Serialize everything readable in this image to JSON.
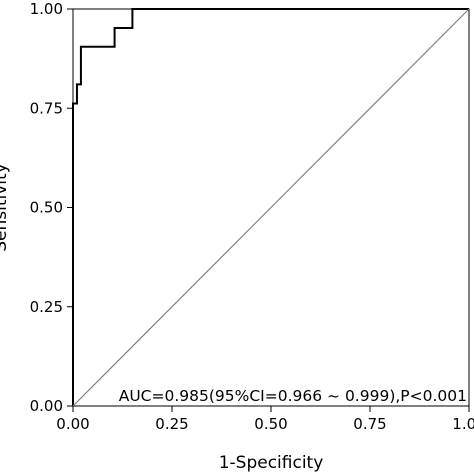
{
  "chart_data": {
    "type": "line",
    "title": "",
    "xlabel": "1-Specificity",
    "ylabel": "Sensitivity",
    "xlim": [
      0,
      1
    ],
    "ylim": [
      0,
      1
    ],
    "x_ticks": [
      "0.00",
      "0.25",
      "0.50",
      "0.75",
      "1.00"
    ],
    "y_ticks": [
      "0.00",
      "0.25",
      "0.50",
      "0.75",
      "1.00"
    ],
    "grid": false,
    "legend": "none",
    "annotation": "AUC=0.985(95%CI=0.966 ~ 0.999),P<0.001",
    "series": [
      {
        "style": "step",
        "color": "#000000",
        "x": [
          0.0,
          0.0,
          0.0,
          0.01,
          0.01,
          0.02,
          0.02,
          0.04,
          0.08,
          0.105,
          0.105,
          0.15,
          0.15,
          1.0
        ],
        "y": [
          0.0,
          0.0,
          0.762,
          0.762,
          0.81,
          0.81,
          0.905,
          0.905,
          0.905,
          0.905,
          0.952,
          0.952,
          1.0,
          1.0
        ]
      },
      {
        "style": "reference",
        "color": "#808080",
        "x": [
          0.0,
          1.0
        ],
        "y": [
          0.0,
          1.0
        ]
      }
    ]
  }
}
